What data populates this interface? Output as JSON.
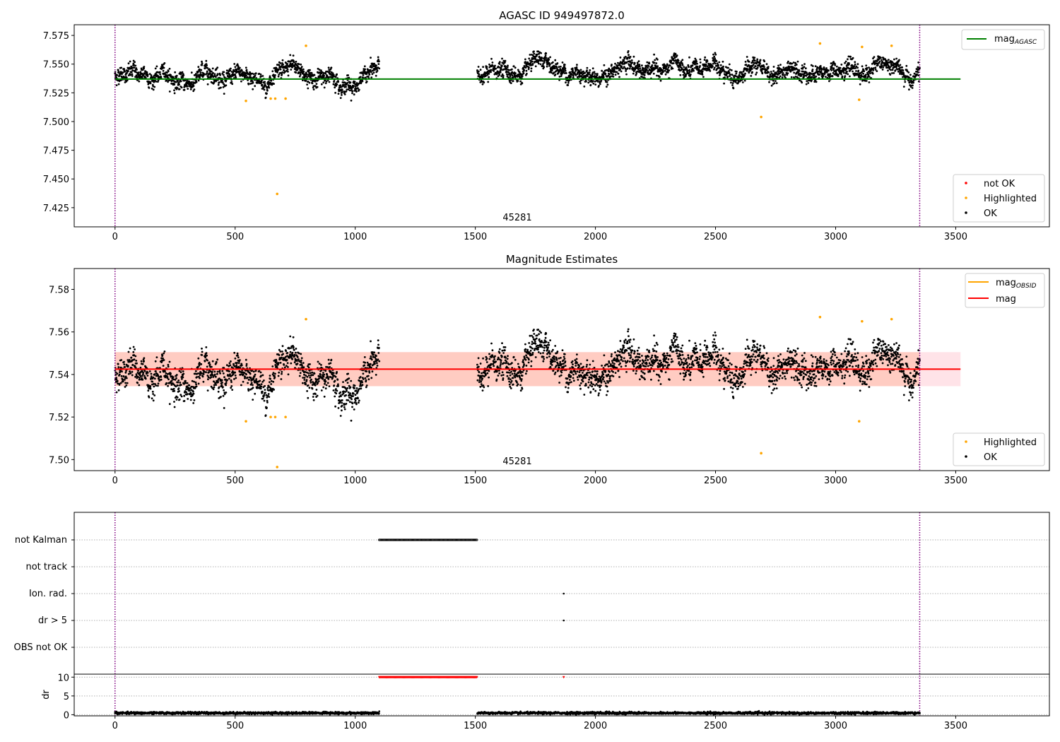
{
  "colors": {
    "ok": "#000000",
    "highlighted": "#ffa500",
    "not_ok": "#ff0000",
    "mag_agasc": "#008000",
    "mag_obsid": "#ffa500",
    "mag": "#ff0000",
    "band_pink": "#ffc0cb",
    "band_salmon": "#ffa07a",
    "obs_boundary": "#800080"
  },
  "chart_data": [
    {
      "type": "scatter",
      "title": "AGASC ID 949497872.0",
      "xlim": [
        -170,
        3890
      ],
      "ylim": [
        7.4083,
        7.5843
      ],
      "xticks": [
        0,
        500,
        1000,
        1500,
        2000,
        2500,
        3000,
        3500
      ],
      "yticks": [
        7.425,
        7.45,
        7.475,
        7.5,
        7.525,
        7.55,
        7.575
      ],
      "ytick_labels": [
        "7.425",
        "7.450",
        "7.475",
        "7.500",
        "7.525",
        "7.550",
        "7.575"
      ],
      "obs_boundaries": [
        0,
        3350
      ],
      "obsid_label": "45281",
      "mag_agasc": 7.537,
      "line_x_range": [
        0,
        3520
      ],
      "ok_segments": [
        {
          "x": [
            0,
            1100
          ],
          "base": 7.539,
          "noise": 0.006,
          "wave": 0.007
        },
        {
          "x": [
            1508,
            3350
          ],
          "base": 7.544,
          "noise": 0.006,
          "wave": 0.005
        }
      ],
      "highlighted": [
        [
          545,
          7.518
        ],
        [
          648,
          7.52
        ],
        [
          667,
          7.52
        ],
        [
          675,
          7.437
        ],
        [
          710,
          7.52
        ],
        [
          795,
          7.566
        ],
        [
          2690,
          7.504
        ],
        [
          2935,
          7.568
        ],
        [
          3098,
          7.519
        ],
        [
          3110,
          7.565
        ],
        [
          3233,
          7.566
        ]
      ],
      "legend_top": [
        {
          "label": "mag",
          "sub": "AGASC",
          "kind": "line",
          "color": "#008000"
        }
      ],
      "legend_bottom": [
        {
          "label": "not OK",
          "kind": "dot",
          "color": "#ff0000"
        },
        {
          "label": "Highlighted",
          "kind": "dot",
          "color": "#ffa500"
        },
        {
          "label": "OK",
          "kind": "dot",
          "color": "#000000"
        }
      ]
    },
    {
      "type": "scatter",
      "title": "Magnitude Estimates",
      "xlim": [
        -170,
        3890
      ],
      "ylim": [
        7.4948,
        7.5898
      ],
      "xticks": [
        0,
        500,
        1000,
        1500,
        2000,
        2500,
        3000,
        3500
      ],
      "yticks": [
        7.5,
        7.52,
        7.54,
        7.56,
        7.58
      ],
      "ytick_labels": [
        "7.50",
        "7.52",
        "7.54",
        "7.56",
        "7.58"
      ],
      "obs_boundaries": [
        0,
        3350
      ],
      "obsid_label": "45281",
      "mag": 7.5425,
      "mag_band": [
        7.5345,
        7.5505
      ],
      "band_x_range": [
        0,
        3520
      ],
      "obsid_band_x_range": [
        0,
        3350
      ],
      "ok_segments": [
        {
          "x": [
            0,
            1100
          ],
          "base": 7.539,
          "noise": 0.006,
          "wave": 0.007
        },
        {
          "x": [
            1508,
            3350
          ],
          "base": 7.544,
          "noise": 0.006,
          "wave": 0.005
        }
      ],
      "highlighted": [
        [
          545,
          7.518
        ],
        [
          648,
          7.52
        ],
        [
          667,
          7.52
        ],
        [
          675,
          7.4965
        ],
        [
          710,
          7.52
        ],
        [
          795,
          7.566
        ],
        [
          2690,
          7.503
        ],
        [
          2935,
          7.567
        ],
        [
          3098,
          7.518
        ],
        [
          3110,
          7.565
        ],
        [
          3233,
          7.566
        ]
      ],
      "legend_top": [
        {
          "label": "mag",
          "sub": "OBSID",
          "kind": "line",
          "color": "#ffa500"
        },
        {
          "label": "mag",
          "kind": "line",
          "color": "#ff0000"
        }
      ],
      "legend_bottom": [
        {
          "label": "Highlighted",
          "kind": "dot",
          "color": "#ffa500"
        },
        {
          "label": "OK",
          "kind": "dot",
          "color": "#000000"
        }
      ]
    },
    {
      "type": "scatter",
      "title": "",
      "xlim": [
        -170,
        3890
      ],
      "xticks": [
        0,
        500,
        1000,
        1500,
        2000,
        2500,
        3000,
        3500
      ],
      "obs_boundaries": [
        0,
        3350
      ],
      "flag_categories": [
        "not Kalman",
        "not track",
        "Ion. rad.",
        "dr > 5",
        "OBS not OK"
      ],
      "flag_ranges": [
        {
          "category": "not Kalman",
          "x": [
            1100,
            1508
          ]
        },
        {
          "category": "Ion. rad.",
          "x": [
            1868,
            1868
          ]
        },
        {
          "category": "dr > 5",
          "x": [
            1868,
            1868
          ]
        }
      ],
      "dr_ylabel": "dr",
      "dr_ylim": [
        -0.3,
        10.8
      ],
      "dr_yticks": [
        0,
        5,
        10
      ],
      "dr_values": {
        "base": 0.45,
        "noise": 0.25,
        "clipped_value": 10
      },
      "dr_clipped_ranges": [
        [
          1100,
          1508
        ],
        [
          1868,
          1868
        ]
      ]
    }
  ]
}
